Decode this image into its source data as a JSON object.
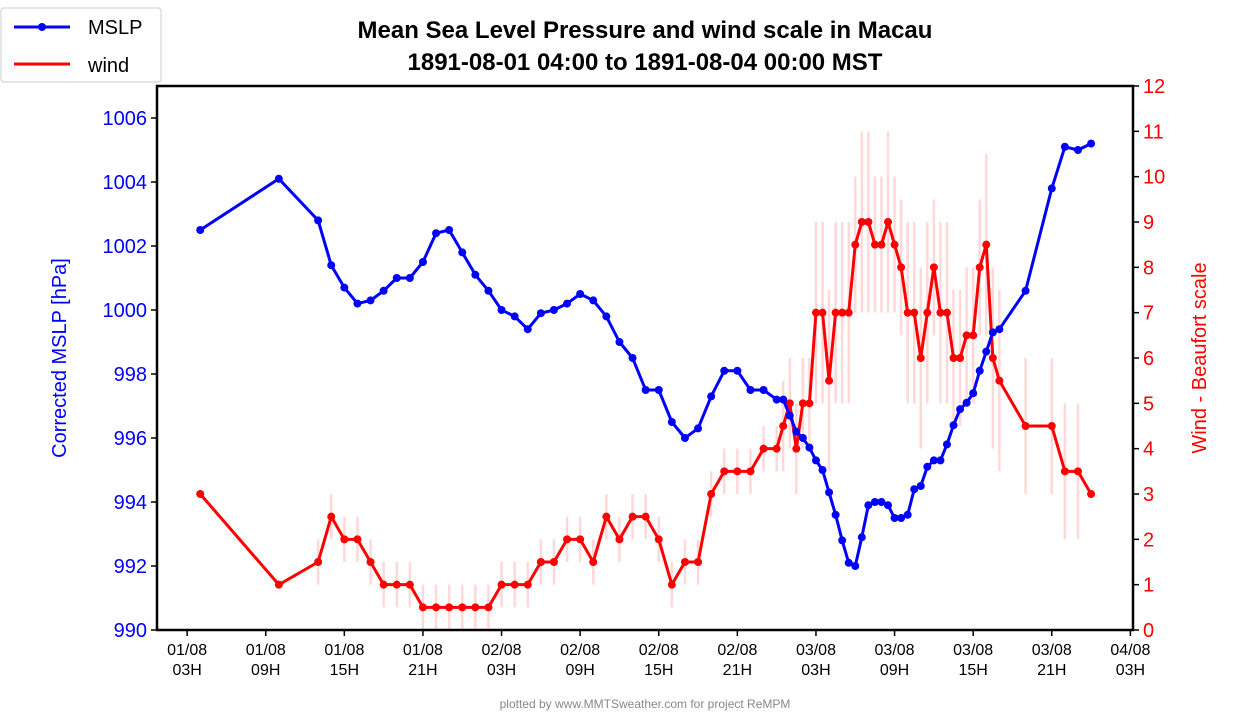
{
  "chart_data": {
    "type": "line",
    "title": "Mean Sea Level Pressure and wind scale in Macau",
    "subtitle": "1891-08-01 04:00 to 1891-08-04 00:00 MST",
    "ylabel_left": "Corrected MSLP [hPa]",
    "ylabel_right": "Wind - Beaufort scale",
    "footer": "plotted by www.MMTSweather.com for project ReMPM",
    "ylim_left": [
      990,
      1007
    ],
    "yticks_left": [
      990,
      992,
      994,
      996,
      998,
      1000,
      1002,
      1004,
      1006
    ],
    "ylim_right": [
      0,
      12
    ],
    "yticks_right": [
      0,
      1,
      2,
      3,
      4,
      5,
      6,
      7,
      8,
      9,
      10,
      11,
      12
    ],
    "x_unit": "hours since 1891-08-01 00:00",
    "xlim": [
      0.7,
      75.2
    ],
    "xticks": [
      {
        "hour": 3,
        "label": [
          "01/08",
          "03H"
        ]
      },
      {
        "hour": 9,
        "label": [
          "01/08",
          "09H"
        ]
      },
      {
        "hour": 15,
        "label": [
          "01/08",
          "15H"
        ]
      },
      {
        "hour": 21,
        "label": [
          "01/08",
          "21H"
        ]
      },
      {
        "hour": 27,
        "label": [
          "02/08",
          "03H"
        ]
      },
      {
        "hour": 33,
        "label": [
          "02/08",
          "09H"
        ]
      },
      {
        "hour": 39,
        "label": [
          "02/08",
          "15H"
        ]
      },
      {
        "hour": 45,
        "label": [
          "02/08",
          "21H"
        ]
      },
      {
        "hour": 51,
        "label": [
          "03/08",
          "03H"
        ]
      },
      {
        "hour": 57,
        "label": [
          "03/08",
          "09H"
        ]
      },
      {
        "hour": 63,
        "label": [
          "03/08",
          "15H"
        ]
      },
      {
        "hour": 69,
        "label": [
          "03/08",
          "21H"
        ]
      },
      {
        "hour": 75,
        "label": [
          "04/08",
          "03H"
        ]
      }
    ],
    "x": [
      4,
      10,
      13,
      14,
      15,
      16,
      17,
      18,
      19,
      20,
      21,
      22,
      23,
      24,
      25,
      26,
      27,
      28,
      29,
      30,
      31,
      32,
      33,
      34,
      35,
      36,
      37,
      38,
      39,
      40,
      41,
      42,
      43,
      44,
      45,
      46,
      47,
      48,
      48.5,
      49,
      49.5,
      50,
      50.5,
      51,
      51.5,
      52,
      52.5,
      53,
      53.5,
      54,
      54.5,
      55,
      55.5,
      56,
      56.5,
      57,
      57.5,
      58,
      58.5,
      59,
      59.5,
      60,
      60.5,
      61,
      61.5,
      62,
      62.5,
      63,
      63.5,
      64,
      64.5,
      65,
      67,
      69,
      70,
      71,
      72
    ],
    "series": [
      {
        "name": "MSLP",
        "axis": "left",
        "color": "#0000ff",
        "values": [
          1002.5,
          1004.1,
          1002.8,
          1001.4,
          1000.7,
          1000.2,
          1000.3,
          1000.6,
          1001.0,
          1001.0,
          1001.5,
          1002.4,
          1002.5,
          1001.8,
          1001.1,
          1000.6,
          1000.0,
          999.8,
          999.4,
          999.9,
          1000.0,
          1000.2,
          1000.5,
          1000.3,
          999.8,
          999.0,
          998.5,
          997.5,
          997.5,
          996.5,
          996.0,
          996.3,
          997.3,
          998.1,
          998.1,
          997.5,
          997.5,
          997.2,
          997.2,
          996.7,
          996.2,
          996.0,
          995.7,
          995.3,
          995.0,
          994.3,
          993.6,
          992.8,
          992.1,
          992.0,
          992.9,
          993.9,
          994.0,
          994.0,
          993.9,
          993.5,
          993.5,
          993.6,
          994.4,
          994.5,
          995.1,
          995.3,
          995.3,
          995.8,
          996.4,
          996.9,
          997.1,
          997.4,
          998.1,
          998.7,
          999.3,
          999.4,
          1000.6,
          1003.8,
          1005.1,
          1005.0,
          1005.2
        ]
      },
      {
        "name": "wind",
        "axis": "right",
        "color": "#ff0000",
        "values": [
          3,
          1,
          1.5,
          2.5,
          2,
          2,
          1.5,
          1,
          1,
          1,
          0.5,
          0.5,
          0.5,
          0.5,
          0.5,
          0.5,
          1,
          1,
          1,
          1.5,
          1.5,
          2,
          2,
          1.5,
          2.5,
          2,
          2.5,
          2.5,
          2,
          1,
          1.5,
          1.5,
          3,
          3.5,
          3.5,
          3.5,
          4,
          4,
          4.5,
          5,
          4,
          5,
          5,
          7,
          7,
          5.5,
          7,
          7,
          7,
          8.5,
          9,
          9,
          8.5,
          8.5,
          9,
          8.5,
          8,
          7,
          7,
          6,
          7,
          8,
          7,
          7,
          6,
          6,
          6.5,
          6.5,
          8,
          8.5,
          6,
          5.5,
          4.5,
          4.5,
          3.5,
          3.5,
          3
        ],
        "error": [
          0,
          0,
          0.5,
          0.5,
          0.5,
          0.5,
          0.5,
          0.5,
          0.5,
          0.5,
          0.5,
          0.5,
          0.5,
          0.5,
          0.5,
          0.5,
          0.5,
          0.5,
          0.5,
          0.5,
          0.5,
          0.5,
          0.5,
          0.5,
          0.5,
          0.5,
          0.5,
          0.5,
          0.5,
          0.5,
          0.5,
          0.5,
          0.5,
          0.5,
          0.5,
          0.5,
          0.5,
          0.5,
          1,
          1,
          1,
          1,
          1,
          2,
          2,
          2,
          2,
          2,
          2,
          1.5,
          2,
          2,
          1.5,
          1.5,
          2,
          1.5,
          1.5,
          2,
          2,
          2,
          2,
          1.5,
          2,
          2,
          1.5,
          1.5,
          1.5,
          1.5,
          1.5,
          2,
          2,
          2,
          1.5,
          1.5,
          1.5,
          1.5,
          0
        ],
        "error_color": "#ffd9d9"
      }
    ],
    "legend": {
      "placement": "top-left",
      "entries": [
        "MSLP",
        "wind"
      ]
    }
  }
}
